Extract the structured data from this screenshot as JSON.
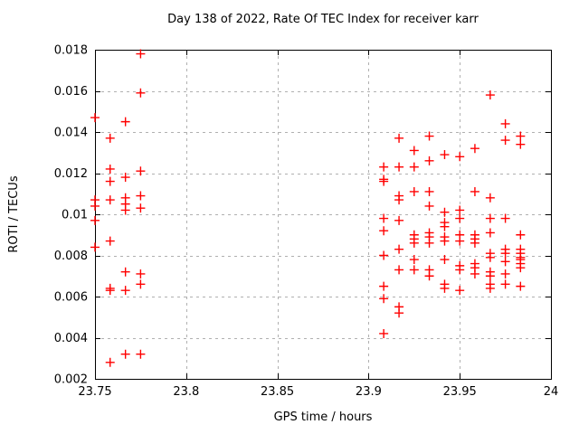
{
  "chart_data": {
    "type": "scatter",
    "title": "Day 138 of 2022, Rate Of TEC Index for receiver karr",
    "xlabel": "GPS time / hours",
    "ylabel": "ROTI / TECUs",
    "xlim": [
      23.75,
      24
    ],
    "ylim": [
      0.002,
      0.018
    ],
    "x_ticks": [
      23.75,
      23.8,
      23.85,
      23.9,
      23.95,
      24
    ],
    "x_tick_labels": [
      "23.75",
      "23.8",
      "23.85",
      "23.9",
      "23.95",
      "24"
    ],
    "y_ticks": [
      0.002,
      0.004,
      0.006,
      0.008,
      0.01,
      0.012,
      0.014,
      0.016,
      0.018
    ],
    "y_tick_labels": [
      "0.002",
      "0.004",
      "0.006",
      "0.008",
      "0.01",
      "0.012",
      "0.014",
      "0.016",
      "0.018"
    ],
    "grid": true,
    "legend": "none",
    "marker": "plus",
    "marker_color": "#ff0000",
    "grid_color": "#b0b0b0",
    "axis_color": "#000000",
    "series": [
      {
        "name": "ROTI",
        "points": [
          [
            23.75,
            0.0147
          ],
          [
            23.75,
            0.0107
          ],
          [
            23.75,
            0.0104
          ],
          [
            23.75,
            0.0097
          ],
          [
            23.75,
            0.0084
          ],
          [
            23.7583,
            0.0137
          ],
          [
            23.7583,
            0.0122
          ],
          [
            23.7583,
            0.0116
          ],
          [
            23.7583,
            0.0107
          ],
          [
            23.7583,
            0.0087
          ],
          [
            23.7583,
            0.0064
          ],
          [
            23.7583,
            0.0063
          ],
          [
            23.7583,
            0.0028
          ],
          [
            23.7667,
            0.0145
          ],
          [
            23.7667,
            0.0118
          ],
          [
            23.7667,
            0.0108
          ],
          [
            23.7667,
            0.0105
          ],
          [
            23.7667,
            0.0102
          ],
          [
            23.7667,
            0.0072
          ],
          [
            23.7667,
            0.0063
          ],
          [
            23.7667,
            0.0032
          ],
          [
            23.775,
            0.0178
          ],
          [
            23.775,
            0.0159
          ],
          [
            23.775,
            0.0121
          ],
          [
            23.775,
            0.0109
          ],
          [
            23.775,
            0.0103
          ],
          [
            23.775,
            0.0071
          ],
          [
            23.775,
            0.0066
          ],
          [
            23.775,
            0.0032
          ],
          [
            23.9083,
            0.0123
          ],
          [
            23.9083,
            0.0117
          ],
          [
            23.9083,
            0.0116
          ],
          [
            23.9083,
            0.0098
          ],
          [
            23.9083,
            0.0092
          ],
          [
            23.9083,
            0.008
          ],
          [
            23.9083,
            0.0065
          ],
          [
            23.9083,
            0.0059
          ],
          [
            23.9083,
            0.0042
          ],
          [
            23.9167,
            0.0137
          ],
          [
            23.9167,
            0.0123
          ],
          [
            23.9167,
            0.0109
          ],
          [
            23.9167,
            0.0107
          ],
          [
            23.9167,
            0.0097
          ],
          [
            23.9167,
            0.0083
          ],
          [
            23.9167,
            0.0073
          ],
          [
            23.9167,
            0.0055
          ],
          [
            23.9167,
            0.0052
          ],
          [
            23.925,
            0.0131
          ],
          [
            23.925,
            0.0123
          ],
          [
            23.925,
            0.0111
          ],
          [
            23.925,
            0.009
          ],
          [
            23.925,
            0.0088
          ],
          [
            23.925,
            0.0086
          ],
          [
            23.925,
            0.0078
          ],
          [
            23.925,
            0.0073
          ],
          [
            23.9333,
            0.0138
          ],
          [
            23.9333,
            0.0126
          ],
          [
            23.9333,
            0.0111
          ],
          [
            23.9333,
            0.0104
          ],
          [
            23.9333,
            0.0091
          ],
          [
            23.9333,
            0.0089
          ],
          [
            23.9333,
            0.0086
          ],
          [
            23.9333,
            0.0073
          ],
          [
            23.9333,
            0.007
          ],
          [
            23.9417,
            0.0129
          ],
          [
            23.9417,
            0.0101
          ],
          [
            23.9417,
            0.0096
          ],
          [
            23.9417,
            0.0094
          ],
          [
            23.9417,
            0.0089
          ],
          [
            23.9417,
            0.0087
          ],
          [
            23.9417,
            0.0078
          ],
          [
            23.9417,
            0.0066
          ],
          [
            23.9417,
            0.0064
          ],
          [
            23.95,
            0.0128
          ],
          [
            23.95,
            0.0102
          ],
          [
            23.95,
            0.0098
          ],
          [
            23.95,
            0.009
          ],
          [
            23.95,
            0.0087
          ],
          [
            23.95,
            0.0075
          ],
          [
            23.95,
            0.0073
          ],
          [
            23.95,
            0.0063
          ],
          [
            23.9583,
            0.0132
          ],
          [
            23.9583,
            0.0111
          ],
          [
            23.9583,
            0.009
          ],
          [
            23.9583,
            0.0088
          ],
          [
            23.9583,
            0.0086
          ],
          [
            23.9583,
            0.0076
          ],
          [
            23.9583,
            0.0074
          ],
          [
            23.9583,
            0.0071
          ],
          [
            23.9667,
            0.0158
          ],
          [
            23.9667,
            0.0108
          ],
          [
            23.9667,
            0.0098
          ],
          [
            23.9667,
            0.0091
          ],
          [
            23.9667,
            0.0081
          ],
          [
            23.9667,
            0.0079
          ],
          [
            23.9667,
            0.0072
          ],
          [
            23.9667,
            0.007
          ],
          [
            23.9667,
            0.0066
          ],
          [
            23.9667,
            0.0064
          ],
          [
            23.975,
            0.0144
          ],
          [
            23.975,
            0.0136
          ],
          [
            23.975,
            0.0098
          ],
          [
            23.975,
            0.0083
          ],
          [
            23.975,
            0.0081
          ],
          [
            23.975,
            0.0077
          ],
          [
            23.975,
            0.0071
          ],
          [
            23.975,
            0.0066
          ],
          [
            23.9833,
            0.0138
          ],
          [
            23.9833,
            0.0134
          ],
          [
            23.9833,
            0.009
          ],
          [
            23.9833,
            0.0083
          ],
          [
            23.9833,
            0.0081
          ],
          [
            23.9833,
            0.0079
          ],
          [
            23.9833,
            0.0078
          ],
          [
            23.9833,
            0.0076
          ],
          [
            23.9833,
            0.0074
          ],
          [
            23.9833,
            0.0065
          ]
        ]
      }
    ]
  }
}
